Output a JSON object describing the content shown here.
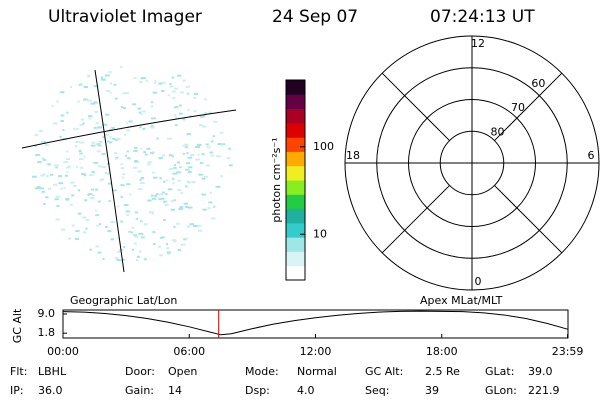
{
  "header": {
    "title": "Ultraviolet Imager",
    "date": "24 Sep 07",
    "time": "07:24:13 UT"
  },
  "colorbar": {
    "label": "photon cm⁻²s⁻¹",
    "log_scale": true,
    "ylim": [
      3,
      580
    ],
    "yticks": [
      10,
      100
    ],
    "colors": [
      "#ffffff",
      "#d8f4f4",
      "#9fe6e6",
      "#33cccc",
      "#1fb0a0",
      "#22cc44",
      "#88ee22",
      "#eeee22",
      "#ffaa00",
      "#ff4400",
      "#dd0000",
      "#aa0022",
      "#660044",
      "#220022"
    ]
  },
  "polar": {
    "rlim": [
      90,
      50
    ],
    "rings": [
      80,
      70,
      60,
      50
    ],
    "lat_labels": [
      60,
      70,
      80
    ],
    "mlt_labels": [
      0,
      6,
      12,
      18
    ]
  },
  "timeline": {
    "title_left": "Geographic Lat/Lon",
    "title_right": "Apex MLat/MLT",
    "ylabel": "GC Alt",
    "xlim": [
      0,
      24
    ],
    "ylim": [
      0,
      10.5
    ],
    "yticks": [
      9.0,
      1.8
    ],
    "yticks_labels": [
      "9.0",
      "1.8"
    ],
    "xticks": [
      {
        "value": 0,
        "label": "00:00"
      },
      {
        "value": 6,
        "label": "06:00"
      },
      {
        "value": 12,
        "label": "12:00"
      },
      {
        "value": 18,
        "label": "18:00"
      },
      {
        "value": 23.98,
        "label": "23:59"
      }
    ],
    "x": [
      0,
      1,
      2,
      3,
      4,
      5,
      6,
      7,
      7.5,
      8,
      9,
      10,
      11,
      12,
      13,
      14,
      15,
      16,
      17,
      18,
      19,
      20,
      21,
      22,
      23,
      23.98
    ],
    "values": [
      9.9,
      9.7,
      9.2,
      8.4,
      7.3,
      5.9,
      4.2,
      2.2,
      1.2,
      1.6,
      3.5,
      5.2,
      6.5,
      7.6,
      8.5,
      9.2,
      9.7,
      10.0,
      10.1,
      10.0,
      9.9,
      9.4,
      8.6,
      7.3,
      5.5,
      3.3
    ],
    "color": "#000000",
    "marker": 7.4,
    "marker_color": "#cc0000"
  },
  "footer": {
    "rows": [
      [
        "Flt:",
        "LBHL",
        "Door:",
        "Open",
        "Mode:",
        "Normal",
        "GC Alt:",
        "2.5 Re",
        "GLat:",
        "39.0"
      ],
      [
        "IP:",
        "36.0",
        "Gain:",
        "14",
        "Dsp:",
        "4.0",
        "Seq:",
        "39",
        "GLon:",
        "221.9"
      ]
    ]
  }
}
